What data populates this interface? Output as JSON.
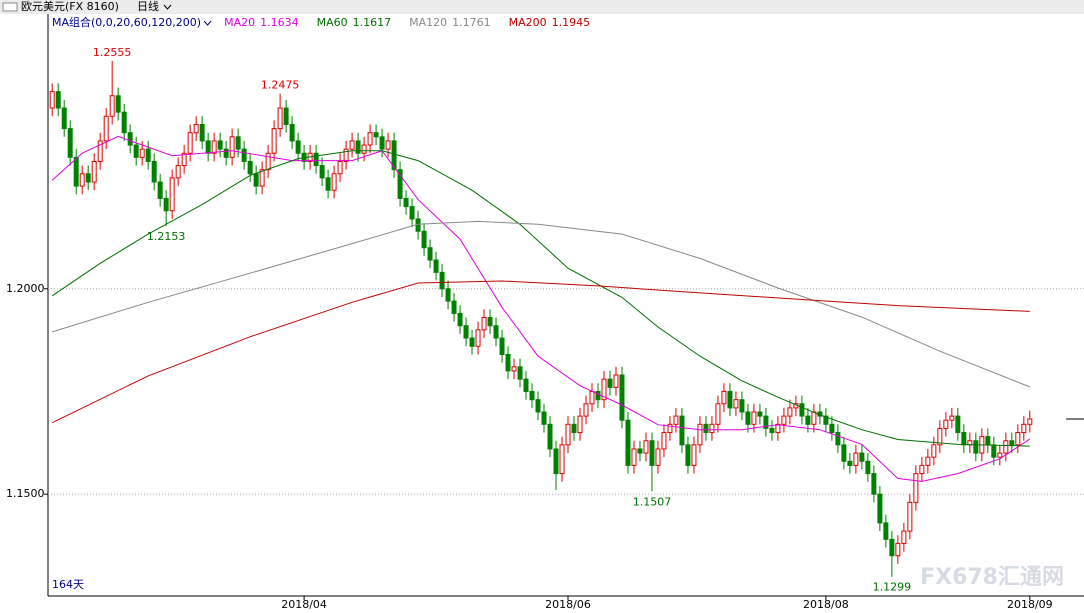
{
  "header": {
    "symbol": "欧元美元(FX 8160)",
    "period": "日线"
  },
  "chart_data": {
    "type": "candlestick",
    "indicator": "MA组合(0,0,20,60,120,200)",
    "count_label": "164天",
    "watermark": "FX678汇通网",
    "up_color": "#e00000",
    "down_color": "#008000",
    "ylim": [
      1.1252,
      1.2669
    ],
    "yticks": [
      {
        "value": 1.2,
        "label": "1.2000"
      },
      {
        "value": 1.15,
        "label": "1.1500"
      }
    ],
    "xlim": [
      -0.7,
      169.7
    ],
    "xticks": [
      {
        "value": 42,
        "label": "2018/04"
      },
      {
        "value": 86,
        "label": "2018/06"
      },
      {
        "value": 129,
        "label": "2018/08"
      },
      {
        "value": 163,
        "label": "2018/09"
      }
    ],
    "grid": true,
    "marked_highs": [
      10,
      38
    ],
    "marked_lows": [
      19,
      100,
      140
    ],
    "open": [
      1.244,
      1.248,
      1.244,
      1.239,
      1.232,
      1.225,
      1.228,
      1.226,
      1.231,
      1.236,
      1.242,
      1.247,
      1.243,
      1.238,
      1.235,
      1.232,
      1.234,
      1.231,
      1.226,
      1.222,
      1.219,
      1.227,
      1.23,
      1.233,
      1.238,
      1.24,
      1.236,
      1.233,
      1.236,
      1.234,
      1.232,
      1.237,
      1.234,
      1.231,
      1.228,
      1.225,
      1.229,
      1.233,
      1.239,
      1.244,
      1.24,
      1.236,
      1.233,
      1.231,
      1.233,
      1.23,
      1.227,
      1.224,
      1.228,
      1.231,
      1.234,
      1.236,
      1.233,
      1.235,
      1.238,
      1.237,
      1.234,
      1.236,
      1.229,
      1.222,
      1.22,
      1.217,
      1.214,
      1.21,
      1.207,
      1.204,
      1.2,
      1.197,
      1.194,
      1.191,
      1.188,
      1.186,
      1.19,
      1.193,
      1.191,
      1.188,
      1.184,
      1.18,
      1.181,
      1.178,
      1.175,
      1.173,
      1.17,
      1.167,
      1.161,
      1.155,
      1.162,
      1.167,
      1.165,
      1.169,
      1.172,
      1.175,
      1.173,
      1.178,
      1.176,
      1.179,
      1.168,
      1.157,
      1.161,
      1.16,
      1.163,
      1.157,
      1.161,
      1.165,
      1.167,
      1.169,
      1.162,
      1.157,
      1.162,
      1.167,
      1.165,
      1.167,
      1.172,
      1.175,
      1.171,
      1.173,
      1.17,
      1.167,
      1.17,
      1.169,
      1.166,
      1.165,
      1.167,
      1.169,
      1.171,
      1.172,
      1.169,
      1.167,
      1.17,
      1.169,
      1.167,
      1.165,
      1.162,
      1.158,
      1.157,
      1.16,
      1.158,
      1.155,
      1.15,
      1.143,
      1.139,
      1.135,
      1.138,
      1.141,
      1.148,
      1.155,
      1.157,
      1.159,
      1.162,
      1.166,
      1.168,
      1.169,
      1.165,
      1.162,
      1.163,
      1.16,
      1.164,
      1.162,
      1.159,
      1.16,
      1.163,
      1.162,
      1.165,
      1.167
    ],
    "high": [
      1.25,
      1.25,
      1.246,
      1.241,
      1.234,
      1.23,
      1.23,
      1.233,
      1.238,
      1.244,
      1.2555,
      1.249,
      1.245,
      1.24,
      1.237,
      1.236,
      1.236,
      1.233,
      1.228,
      1.224,
      1.229,
      1.232,
      1.235,
      1.24,
      1.242,
      1.242,
      1.238,
      1.238,
      1.238,
      1.236,
      1.239,
      1.239,
      1.236,
      1.233,
      1.23,
      1.231,
      1.235,
      1.241,
      1.2475,
      1.246,
      1.242,
      1.238,
      1.235,
      1.235,
      1.235,
      1.232,
      1.229,
      1.23,
      1.233,
      1.236,
      1.238,
      1.238,
      1.237,
      1.24,
      1.24,
      1.239,
      1.238,
      1.238,
      1.231,
      1.224,
      1.222,
      1.219,
      1.216,
      1.212,
      1.209,
      1.206,
      1.202,
      1.199,
      1.196,
      1.193,
      1.19,
      1.192,
      1.195,
      1.195,
      1.193,
      1.19,
      1.186,
      1.183,
      1.183,
      1.18,
      1.177,
      1.175,
      1.172,
      1.169,
      1.163,
      1.164,
      1.169,
      1.169,
      1.171,
      1.174,
      1.177,
      1.177,
      1.18,
      1.18,
      1.181,
      1.181,
      1.17,
      1.163,
      1.163,
      1.165,
      1.165,
      1.163,
      1.167,
      1.169,
      1.171,
      1.171,
      1.164,
      1.164,
      1.169,
      1.169,
      1.169,
      1.174,
      1.177,
      1.177,
      1.175,
      1.175,
      1.172,
      1.172,
      1.172,
      1.171,
      1.168,
      1.169,
      1.171,
      1.173,
      1.174,
      1.174,
      1.171,
      1.172,
      1.172,
      1.171,
      1.169,
      1.167,
      1.164,
      1.16,
      1.162,
      1.162,
      1.16,
      1.157,
      1.152,
      1.145,
      1.141,
      1.14,
      1.143,
      1.15,
      1.157,
      1.159,
      1.161,
      1.164,
      1.168,
      1.17,
      1.171,
      1.171,
      1.167,
      1.165,
      1.165,
      1.166,
      1.166,
      1.164,
      1.162,
      1.165,
      1.165,
      1.167,
      1.169,
      1.1703
    ],
    "low": [
      1.242,
      1.242,
      1.237,
      1.23,
      1.223,
      1.223,
      1.224,
      1.224,
      1.229,
      1.234,
      1.24,
      1.241,
      1.236,
      1.233,
      1.23,
      1.23,
      1.229,
      1.224,
      1.22,
      1.2153,
      1.217,
      1.225,
      1.228,
      1.231,
      1.236,
      1.234,
      1.231,
      1.231,
      1.232,
      1.23,
      1.23,
      1.232,
      1.229,
      1.226,
      1.223,
      1.223,
      1.227,
      1.231,
      1.237,
      1.238,
      1.234,
      1.231,
      1.229,
      1.229,
      1.228,
      1.225,
      1.222,
      1.222,
      1.226,
      1.229,
      1.232,
      1.231,
      1.231,
      1.233,
      1.235,
      1.232,
      1.232,
      1.227,
      1.22,
      1.218,
      1.215,
      1.212,
      1.208,
      1.205,
      1.202,
      1.198,
      1.195,
      1.192,
      1.189,
      1.186,
      1.184,
      1.184,
      1.188,
      1.189,
      1.186,
      1.182,
      1.178,
      1.178,
      1.176,
      1.173,
      1.171,
      1.168,
      1.165,
      1.159,
      1.151,
      1.153,
      1.16,
      1.163,
      1.163,
      1.167,
      1.17,
      1.171,
      1.171,
      1.174,
      1.174,
      1.166,
      1.155,
      1.155,
      1.158,
      1.158,
      1.1507,
      1.155,
      1.159,
      1.163,
      1.165,
      1.16,
      1.155,
      1.155,
      1.16,
      1.163,
      1.163,
      1.165,
      1.17,
      1.169,
      1.169,
      1.168,
      1.165,
      1.165,
      1.167,
      1.164,
      1.163,
      1.163,
      1.165,
      1.167,
      1.169,
      1.167,
      1.165,
      1.165,
      1.167,
      1.165,
      1.163,
      1.16,
      1.156,
      1.155,
      1.155,
      1.156,
      1.153,
      1.148,
      1.141,
      1.137,
      1.1299,
      1.133,
      1.136,
      1.139,
      1.146,
      1.153,
      1.155,
      1.157,
      1.16,
      1.164,
      1.166,
      1.163,
      1.16,
      1.16,
      1.158,
      1.158,
      1.16,
      1.157,
      1.157,
      1.158,
      1.16,
      1.16,
      1.163,
      1.165
    ],
    "close": [
      1.248,
      1.244,
      1.239,
      1.232,
      1.225,
      1.228,
      1.226,
      1.231,
      1.236,
      1.242,
      1.247,
      1.243,
      1.238,
      1.235,
      1.232,
      1.234,
      1.231,
      1.226,
      1.222,
      1.219,
      1.227,
      1.23,
      1.233,
      1.238,
      1.24,
      1.236,
      1.233,
      1.236,
      1.234,
      1.232,
      1.237,
      1.234,
      1.231,
      1.228,
      1.225,
      1.229,
      1.233,
      1.239,
      1.244,
      1.24,
      1.236,
      1.233,
      1.231,
      1.233,
      1.23,
      1.227,
      1.224,
      1.228,
      1.231,
      1.234,
      1.236,
      1.233,
      1.235,
      1.238,
      1.237,
      1.234,
      1.236,
      1.229,
      1.222,
      1.22,
      1.217,
      1.214,
      1.21,
      1.207,
      1.204,
      1.2,
      1.197,
      1.194,
      1.191,
      1.188,
      1.186,
      1.19,
      1.193,
      1.191,
      1.188,
      1.184,
      1.18,
      1.181,
      1.178,
      1.175,
      1.173,
      1.17,
      1.167,
      1.161,
      1.155,
      1.162,
      1.167,
      1.165,
      1.169,
      1.172,
      1.175,
      1.173,
      1.178,
      1.176,
      1.179,
      1.168,
      1.157,
      1.161,
      1.16,
      1.163,
      1.157,
      1.161,
      1.165,
      1.167,
      1.169,
      1.162,
      1.157,
      1.162,
      1.167,
      1.165,
      1.167,
      1.172,
      1.175,
      1.171,
      1.173,
      1.17,
      1.167,
      1.17,
      1.169,
      1.166,
      1.165,
      1.167,
      1.169,
      1.171,
      1.172,
      1.169,
      1.167,
      1.17,
      1.169,
      1.167,
      1.165,
      1.162,
      1.158,
      1.157,
      1.16,
      1.158,
      1.155,
      1.15,
      1.143,
      1.139,
      1.135,
      1.138,
      1.141,
      1.148,
      1.155,
      1.157,
      1.159,
      1.162,
      1.166,
      1.168,
      1.169,
      1.165,
      1.162,
      1.163,
      1.16,
      1.164,
      1.162,
      1.159,
      1.16,
      1.163,
      1.162,
      1.165,
      1.167,
      1.1683
    ],
    "series": [
      {
        "name": "MA20",
        "color": "#e000e0",
        "legend_value": 1.1634,
        "x": [
          0,
          5,
          11,
          20,
          30,
          40,
          50,
          55,
          61,
          68,
          75,
          81,
          88,
          95,
          101,
          108,
          115,
          121,
          128,
          135,
          141,
          145,
          151,
          158,
          163
        ],
        "values": [
          1.2264,
          1.233,
          1.2371,
          1.2324,
          1.2336,
          1.2312,
          1.2312,
          1.2336,
          1.2217,
          1.2121,
          1.1955,
          1.1836,
          1.1764,
          1.1717,
          1.1669,
          1.1657,
          1.1657,
          1.1669,
          1.1657,
          1.1621,
          1.1538,
          1.1531,
          1.155,
          1.1586,
          1.1634
        ]
      },
      {
        "name": "MA60",
        "color": "#007000",
        "legend_value": 1.1617,
        "x": [
          0,
          8,
          16,
          25,
          33,
          41,
          50,
          55,
          61,
          70,
          78,
          86,
          95,
          101,
          108,
          115,
          121,
          128,
          135,
          141,
          151,
          163
        ],
        "values": [
          1.1983,
          1.2062,
          1.2133,
          1.2205,
          1.2276,
          1.2317,
          1.2336,
          1.2336,
          1.2312,
          1.224,
          1.2157,
          1.205,
          1.1979,
          1.1907,
          1.1836,
          1.1776,
          1.1736,
          1.1693,
          1.1657,
          1.1633,
          1.1621,
          1.1617
        ]
      },
      {
        "name": "MA120",
        "color": "#888888",
        "legend_value": 1.1761,
        "x": [
          0,
          16,
          33,
          50,
          61,
          71,
          81,
          95,
          108,
          121,
          135,
          148,
          163
        ],
        "values": [
          1.1895,
          1.1967,
          1.2038,
          1.211,
          1.2157,
          1.2164,
          1.2157,
          1.2133,
          1.2074,
          1.2002,
          1.1931,
          1.1848,
          1.1761
        ]
      },
      {
        "name": "MA200",
        "color": "#c00000",
        "legend_value": 1.1945,
        "x": [
          0,
          16,
          33,
          50,
          61,
          75,
          91,
          108,
          125,
          141,
          163
        ],
        "values": [
          1.1674,
          1.1788,
          1.1883,
          1.1967,
          1.2014,
          1.2019,
          1.2007,
          1.199,
          1.1974,
          1.1959,
          1.1945
        ]
      }
    ]
  }
}
